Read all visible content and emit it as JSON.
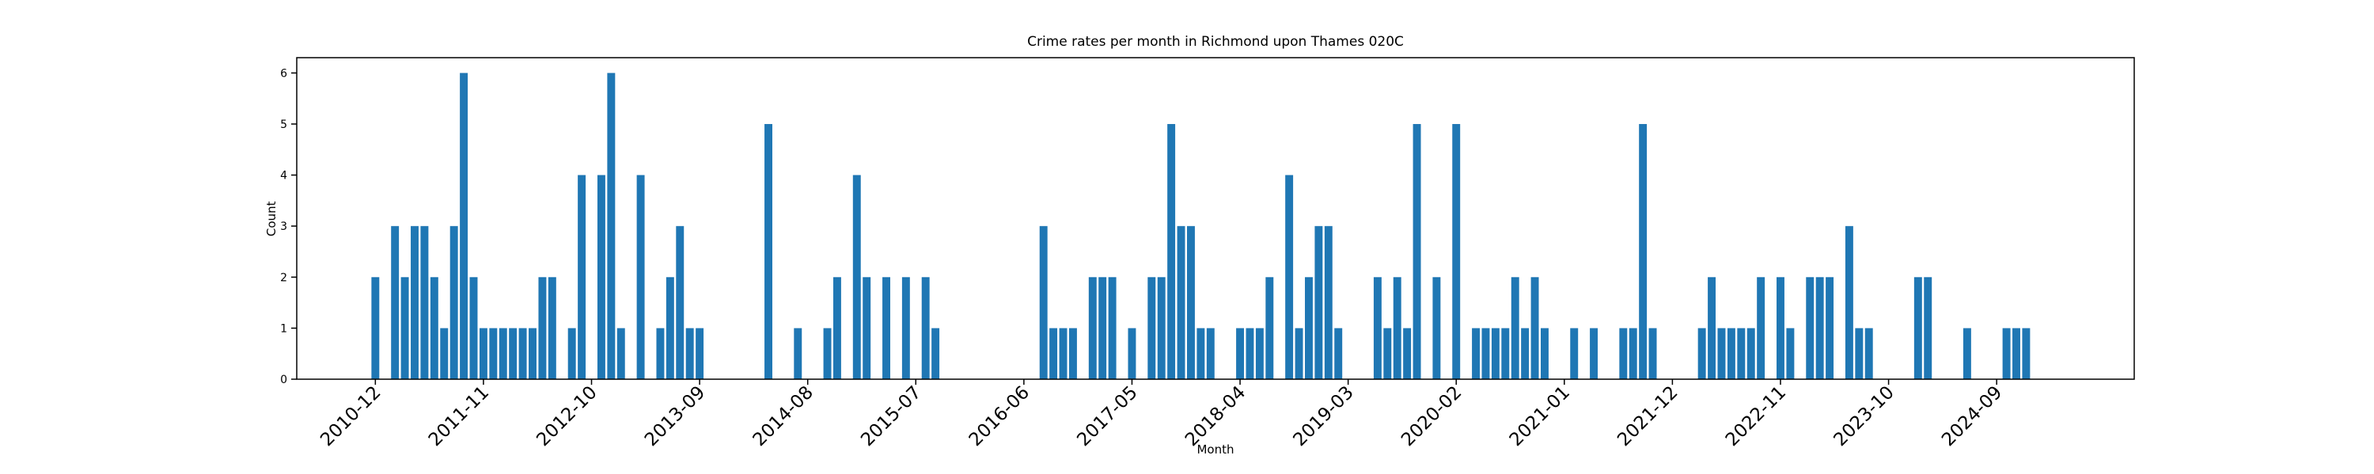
{
  "chart_data": {
    "type": "bar",
    "title": "Crime rates per month in Richmond upon Thames 020C",
    "xlabel": "Month",
    "ylabel": "Count",
    "color": "#1f77b4",
    "x": [
      "2010-12",
      "2011-02",
      "2011-03",
      "2011-04",
      "2011-05",
      "2011-06",
      "2011-07",
      "2011-08",
      "2011-09",
      "2011-10",
      "2011-11",
      "2011-12",
      "2012-01",
      "2012-02",
      "2012-03",
      "2012-04",
      "2012-05",
      "2012-06",
      "2012-08",
      "2012-09",
      "2012-11",
      "2012-12",
      "2013-01",
      "2013-03",
      "2013-05",
      "2013-06",
      "2013-07",
      "2013-08",
      "2013-09",
      "2014-04",
      "2014-07",
      "2014-10",
      "2014-11",
      "2015-01",
      "2015-02",
      "2015-04",
      "2015-06",
      "2015-08",
      "2015-09",
      "2016-08",
      "2016-09",
      "2016-10",
      "2016-11",
      "2017-01",
      "2017-02",
      "2017-03",
      "2017-05",
      "2017-07",
      "2017-08",
      "2017-09",
      "2017-10",
      "2017-11",
      "2017-12",
      "2018-01",
      "2018-04",
      "2018-05",
      "2018-06",
      "2018-07",
      "2018-09",
      "2018-10",
      "2018-11",
      "2018-12",
      "2019-01",
      "2019-02",
      "2019-06",
      "2019-07",
      "2019-08",
      "2019-09",
      "2019-10",
      "2019-12",
      "2020-02",
      "2020-04",
      "2020-05",
      "2020-06",
      "2020-07",
      "2020-08",
      "2020-09",
      "2020-10",
      "2020-11",
      "2021-02",
      "2021-04",
      "2021-07",
      "2021-08",
      "2021-09",
      "2021-10",
      "2022-03",
      "2022-04",
      "2022-05",
      "2022-06",
      "2022-07",
      "2022-08",
      "2022-09",
      "2022-11",
      "2022-12",
      "2023-02",
      "2023-03",
      "2023-04",
      "2023-06",
      "2023-07",
      "2023-08",
      "2024-01",
      "2024-02",
      "2024-06",
      "2024-10",
      "2024-11",
      "2024-12"
    ],
    "values": [
      2,
      3,
      2,
      3,
      3,
      2,
      1,
      3,
      6,
      2,
      1,
      1,
      1,
      1,
      1,
      1,
      2,
      2,
      1,
      4,
      4,
      6,
      1,
      4,
      1,
      2,
      3,
      1,
      1,
      5,
      1,
      1,
      2,
      4,
      2,
      2,
      2,
      2,
      1,
      3,
      1,
      1,
      1,
      2,
      2,
      2,
      1,
      2,
      2,
      5,
      3,
      3,
      1,
      1,
      1,
      1,
      1,
      2,
      4,
      1,
      2,
      3,
      3,
      1,
      2,
      1,
      2,
      1,
      5,
      2,
      5,
      1,
      1,
      1,
      1,
      2,
      1,
      2,
      1,
      1,
      1,
      1,
      1,
      5,
      1,
      1,
      2,
      1,
      1,
      1,
      1,
      2,
      2,
      1,
      2,
      2,
      2,
      3,
      1,
      1,
      2,
      2,
      1,
      1,
      1,
      1
    ],
    "xlim": [
      "2010-04",
      "2025-11"
    ],
    "xticks": [
      "2010-12",
      "2011-11",
      "2012-10",
      "2013-09",
      "2014-08",
      "2015-07",
      "2016-06",
      "2017-05",
      "2018-04",
      "2019-03",
      "2020-02",
      "2021-01",
      "2021-12",
      "2022-11",
      "2023-10",
      "2024-09"
    ],
    "ylim": [
      0,
      6.3
    ],
    "yticks": [
      0,
      1,
      2,
      3,
      4,
      5,
      6
    ]
  }
}
